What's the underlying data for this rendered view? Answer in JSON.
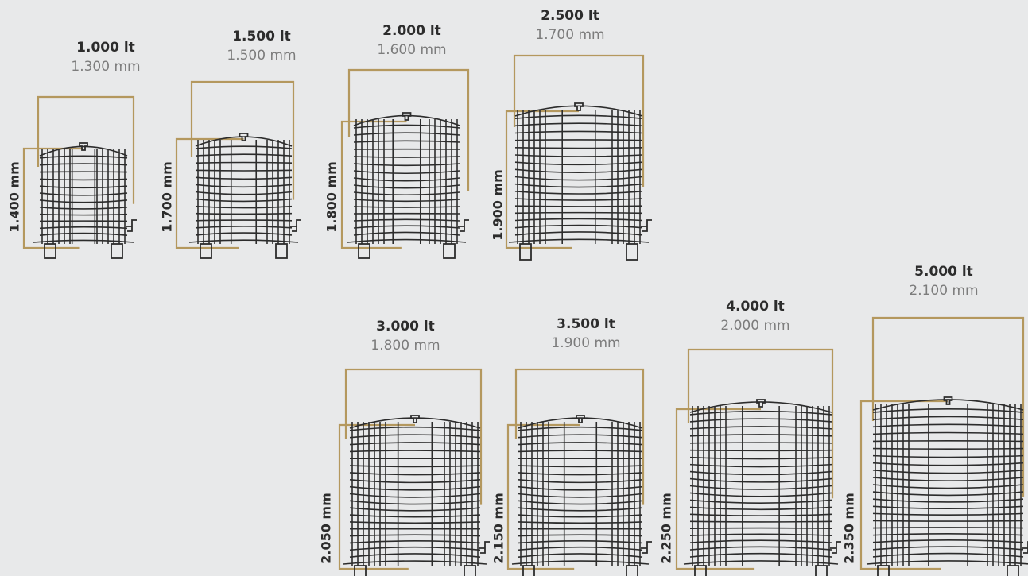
{
  "accent_color": "#b4985e",
  "ink_color": "#2c2c2c",
  "tanks": [
    {
      "volume": "1.000 lt",
      "diameter": "1.300 mm",
      "height": "1.400 mm"
    },
    {
      "volume": "1.500 lt",
      "diameter": "1.500 mm",
      "height": "1.700 mm"
    },
    {
      "volume": "2.000 lt",
      "diameter": "1.600 mm",
      "height": "1.800 mm"
    },
    {
      "volume": "2.500 lt",
      "diameter": "1.700 mm",
      "height": "1.900 mm"
    },
    {
      "volume": "3.000 lt",
      "diameter": "1.800 mm",
      "height": "2.050 mm"
    },
    {
      "volume": "3.500 lt",
      "diameter": "1.900 mm",
      "height": "2.150 mm"
    },
    {
      "volume": "4.000 lt",
      "diameter": "2.000 mm",
      "height": "2.250 mm"
    },
    {
      "volume": "5.000 lt",
      "diameter": "2.100 mm",
      "height": "2.350 mm"
    }
  ]
}
